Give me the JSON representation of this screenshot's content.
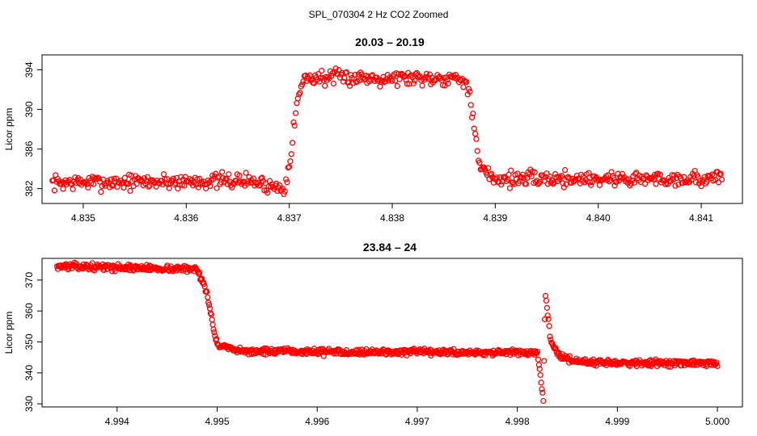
{
  "figure_title": "SPL_070304  2 Hz CO2 Zoomed",
  "chart_data": [
    {
      "type": "scatter",
      "title": "20.03 – 20.19",
      "xlabel": "",
      "ylabel": "Licor ppm",
      "xlim": [
        4.8346,
        4.8414
      ],
      "ylim": [
        380.5,
        395.5
      ],
      "xticks": [
        4.835,
        4.836,
        4.837,
        4.838,
        4.839,
        4.84,
        4.841
      ],
      "xtick_labels": [
        "4.835",
        "4.836",
        "4.837",
        "4.838",
        "4.839",
        "4.840",
        "4.841"
      ],
      "yticks": [
        382,
        386,
        390,
        394
      ],
      "ytick_labels": [
        "382",
        "386",
        "390",
        "394"
      ],
      "grid": false,
      "marker": "open-circle",
      "color": "#ff0000",
      "series_profile": [
        {
          "x": 4.8347,
          "y": 382.6
        },
        {
          "x": 4.8366,
          "y": 382.8
        },
        {
          "x": 4.83695,
          "y": 382.0
        },
        {
          "x": 4.837,
          "y": 384.5
        },
        {
          "x": 4.83708,
          "y": 391.0
        },
        {
          "x": 4.83715,
          "y": 393.2
        },
        {
          "x": 4.838,
          "y": 393.2
        },
        {
          "x": 4.8387,
          "y": 393.2
        },
        {
          "x": 4.83875,
          "y": 391.5
        },
        {
          "x": 4.83885,
          "y": 384.0
        },
        {
          "x": 4.839,
          "y": 383.0
        },
        {
          "x": 4.8412,
          "y": 383.0
        }
      ]
    },
    {
      "type": "scatter",
      "title": "23.84 – 24",
      "xlabel": "",
      "ylabel": "Licor ppm",
      "xlim": [
        4.99325,
        5.00025
      ],
      "ylim": [
        329,
        377
      ],
      "xticks": [
        4.994,
        4.995,
        4.996,
        4.997,
        4.998,
        4.999,
        5.0
      ],
      "xtick_labels": [
        "4.994",
        "4.995",
        "4.996",
        "4.997",
        "4.998",
        "4.999",
        "5.000"
      ],
      "yticks": [
        330,
        340,
        350,
        360,
        370
      ],
      "ytick_labels": [
        "330",
        "340",
        "350",
        "360",
        "370"
      ],
      "grid": false,
      "marker": "open-circle",
      "color": "#ff0000",
      "series_profile": [
        {
          "x": 4.9934,
          "y": 374.5
        },
        {
          "x": 4.9948,
          "y": 373.5
        },
        {
          "x": 4.99488,
          "y": 368.0
        },
        {
          "x": 4.99495,
          "y": 357.0
        },
        {
          "x": 4.995,
          "y": 349.0
        },
        {
          "x": 4.9952,
          "y": 347.0
        },
        {
          "x": 4.9982,
          "y": 346.5
        },
        {
          "x": 4.99826,
          "y": 331.0
        },
        {
          "x": 4.99828,
          "y": 366.0
        },
        {
          "x": 4.99833,
          "y": 351.0
        },
        {
          "x": 4.9984,
          "y": 346.0
        },
        {
          "x": 4.9986,
          "y": 343.5
        },
        {
          "x": 5.0,
          "y": 343.0
        }
      ]
    }
  ]
}
